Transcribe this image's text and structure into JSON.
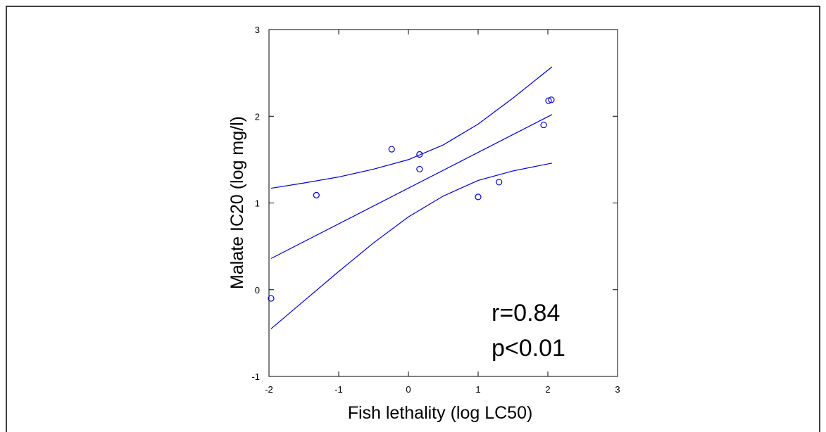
{
  "chart_data": {
    "type": "scatter",
    "xlabel": "Fish lethality (log LC50)",
    "ylabel": "Malate IC20 (log mg/l)",
    "annotations": [
      "r=0.84",
      "p<0.01"
    ],
    "color": "#0000cc",
    "xlim": [
      -2,
      3
    ],
    "ylim": [
      -1,
      3
    ],
    "xticks": [
      -2,
      -1,
      0,
      1,
      2,
      3
    ],
    "yticks": [
      -1,
      0,
      1,
      2,
      3
    ],
    "points": {
      "x": [
        -1.97,
        -1.32,
        -0.24,
        0.16,
        0.16,
        1.0,
        1.3,
        1.94,
        2.01,
        2.05
      ],
      "y": [
        -0.1,
        1.09,
        1.62,
        1.56,
        1.39,
        1.07,
        1.24,
        1.9,
        2.18,
        2.19
      ]
    },
    "lines": [
      {
        "x": [
          -1.97,
          2.06
        ],
        "y": [
          0.36,
          2.02
        ]
      },
      {
        "x": [
          -1.97,
          -1.5,
          -1,
          -0.5,
          0,
          0.5,
          1,
          1.5,
          2.06
        ],
        "y": [
          1.17,
          1.23,
          1.3,
          1.39,
          1.5,
          1.67,
          1.91,
          2.21,
          2.57
        ]
      },
      {
        "x": [
          -1.97,
          -1.5,
          -1,
          -0.5,
          0,
          0.5,
          1,
          1.5,
          2.06
        ],
        "y": [
          -0.45,
          -0.13,
          0.21,
          0.54,
          0.84,
          1.08,
          1.26,
          1.37,
          1.46
        ]
      }
    ]
  }
}
